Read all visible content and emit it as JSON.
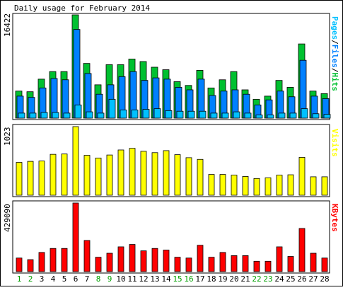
{
  "title": "Daily usage for February 2014",
  "colors": {
    "background": "#ffffff",
    "panel_border": "#000000",
    "hits": "#00c030",
    "files": "#0080ff",
    "pages": "#00c0ff",
    "visits": "#ffff00",
    "kbytes": "#ff0000",
    "weekend_label": "#00a000",
    "weekday_label": "#000000"
  },
  "chart_data": [
    {
      "type": "bar",
      "panel": "hits-files-pages",
      "ymax_label": "16422",
      "ylim": [
        0,
        16422
      ],
      "legend": [
        {
          "text": "Pages",
          "color": "#00c0ff"
        },
        {
          "text": "/",
          "color": "#000000"
        },
        {
          "text": "Files",
          "color": "#0080ff"
        },
        {
          "text": "/",
          "color": "#000000"
        },
        {
          "text": "Hits",
          "color": "#00c030"
        }
      ],
      "categories": [
        "1",
        "2",
        "3",
        "4",
        "5",
        "6",
        "7",
        "8",
        "9",
        "10",
        "11",
        "12",
        "13",
        "14",
        "15",
        "16",
        "17",
        "18",
        "19",
        "20",
        "21",
        "22",
        "23",
        "24",
        "25",
        "26",
        "27",
        "28"
      ],
      "series": [
        {
          "name": "Hits",
          "color": "#00c030",
          "values": [
            4300,
            4200,
            6200,
            7400,
            7400,
            16422,
            8700,
            5300,
            8500,
            8500,
            9400,
            9000,
            8100,
            7700,
            5800,
            5200,
            7600,
            4800,
            6100,
            7400,
            4500,
            3000,
            3500,
            6000,
            4900,
            11800,
            4300,
            3900
          ]
        },
        {
          "name": "Files",
          "color": "#0080ff",
          "values": [
            3500,
            3300,
            4800,
            6300,
            6100,
            14100,
            7100,
            3800,
            5300,
            6600,
            7400,
            6000,
            6400,
            6200,
            4900,
            4500,
            6200,
            3600,
            4300,
            4500,
            3800,
            2100,
            2900,
            4300,
            3400,
            9200,
            3500,
            3100
          ]
        },
        {
          "name": "Pages",
          "color": "#00c0ff",
          "values": [
            800,
            800,
            900,
            900,
            800,
            2100,
            1000,
            800,
            3000,
            1300,
            1300,
            1400,
            1500,
            1200,
            1100,
            1100,
            1100,
            800,
            800,
            1000,
            800,
            500,
            500,
            800,
            800,
            1500,
            700,
            600
          ]
        }
      ]
    },
    {
      "type": "bar",
      "panel": "visits",
      "ymax_label": "1023",
      "ylim": [
        0,
        1023
      ],
      "legend": [
        {
          "text": "Visits",
          "color": "#ffff00"
        }
      ],
      "categories": [
        "1",
        "2",
        "3",
        "4",
        "5",
        "6",
        "7",
        "8",
        "9",
        "10",
        "11",
        "12",
        "13",
        "14",
        "15",
        "16",
        "17",
        "18",
        "19",
        "20",
        "21",
        "22",
        "23",
        "24",
        "25",
        "26",
        "27",
        "28"
      ],
      "series": [
        {
          "name": "Visits",
          "color": "#ffff00",
          "values": [
            490,
            505,
            510,
            610,
            615,
            1023,
            595,
            555,
            600,
            675,
            700,
            655,
            635,
            665,
            605,
            560,
            535,
            310,
            310,
            300,
            280,
            250,
            260,
            300,
            305,
            565,
            275,
            275
          ]
        }
      ]
    },
    {
      "type": "bar",
      "panel": "kbytes",
      "ymax_label": "429090",
      "ylim": [
        0,
        429090
      ],
      "legend": [
        {
          "text": "KBytes",
          "color": "#ff0000"
        }
      ],
      "categories": [
        "1",
        "2",
        "3",
        "4",
        "5",
        "6",
        "7",
        "8",
        "9",
        "10",
        "11",
        "12",
        "13",
        "14",
        "15",
        "16",
        "17",
        "18",
        "19",
        "20",
        "21",
        "22",
        "23",
        "24",
        "25",
        "26",
        "27",
        "28"
      ],
      "series": [
        {
          "name": "KBytes",
          "color": "#ff0000",
          "values": [
            85000,
            75000,
            120000,
            145000,
            145000,
            429090,
            195000,
            90000,
            115000,
            155000,
            170000,
            130000,
            145000,
            135000,
            90000,
            85000,
            165000,
            90000,
            120000,
            100000,
            100000,
            65000,
            65000,
            155000,
            95000,
            270000,
            115000,
            85000
          ]
        }
      ]
    }
  ],
  "day_labels": [
    {
      "text": "1",
      "weekend": true
    },
    {
      "text": "2",
      "weekend": true
    },
    {
      "text": "3",
      "weekend": false
    },
    {
      "text": "4",
      "weekend": false
    },
    {
      "text": "5",
      "weekend": false
    },
    {
      "text": "6",
      "weekend": false
    },
    {
      "text": "7",
      "weekend": false
    },
    {
      "text": "8",
      "weekend": true
    },
    {
      "text": "9",
      "weekend": true
    },
    {
      "text": "10",
      "weekend": false
    },
    {
      "text": "11",
      "weekend": false
    },
    {
      "text": "12",
      "weekend": false
    },
    {
      "text": "13",
      "weekend": false
    },
    {
      "text": "14",
      "weekend": false
    },
    {
      "text": "15",
      "weekend": true
    },
    {
      "text": "16",
      "weekend": true
    },
    {
      "text": "17",
      "weekend": false
    },
    {
      "text": "18",
      "weekend": false
    },
    {
      "text": "19",
      "weekend": false
    },
    {
      "text": "20",
      "weekend": false
    },
    {
      "text": "21",
      "weekend": false
    },
    {
      "text": "22",
      "weekend": true
    },
    {
      "text": "23",
      "weekend": true
    },
    {
      "text": "24",
      "weekend": false
    },
    {
      "text": "25",
      "weekend": false
    },
    {
      "text": "26",
      "weekend": false
    },
    {
      "text": "27",
      "weekend": false
    },
    {
      "text": "28",
      "weekend": false
    }
  ]
}
